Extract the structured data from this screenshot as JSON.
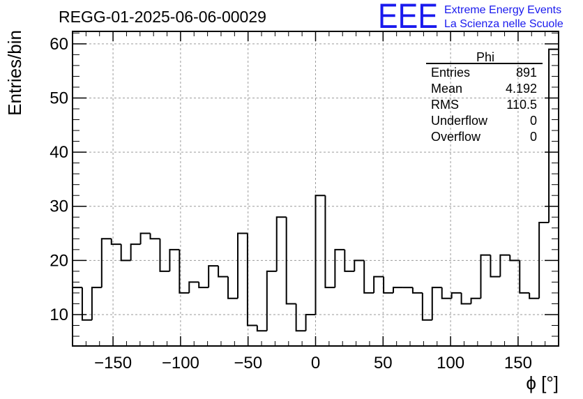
{
  "title": "REGG-01-2025-06-06-00029",
  "logo": {
    "mark": "EEE",
    "line1": "Extreme Energy Events",
    "line2": "La Scienza nelle Scuole",
    "color": "#1a1aee"
  },
  "stats_box": {
    "name": "Phi",
    "rows": [
      {
        "label": "Entries",
        "value": "891"
      },
      {
        "label": "Mean",
        "value": "4.192"
      },
      {
        "label": "RMS",
        "value": "110.5"
      },
      {
        "label": "Underflow",
        "value": "0"
      },
      {
        "label": "Overflow",
        "value": "0"
      }
    ]
  },
  "chart_data": {
    "type": "bar",
    "histogram": true,
    "title": "REGG-01-2025-06-06-00029",
    "xlabel": "ϕ [°]",
    "ylabel": "Entries/bin",
    "xlim": [
      -180,
      180
    ],
    "ylim": [
      4.2,
      62.3
    ],
    "bin_width": 7.2,
    "values": [
      15,
      9,
      15,
      24,
      23,
      20,
      23,
      25,
      24,
      18,
      22,
      14,
      16,
      15,
      19,
      17,
      13,
      25,
      8,
      7,
      18,
      28,
      12,
      7,
      10,
      32,
      15,
      22,
      18,
      20,
      14,
      17,
      14,
      15,
      15,
      14,
      9,
      15,
      13,
      14,
      12,
      13,
      21,
      17,
      21,
      20,
      14,
      13,
      27,
      59
    ],
    "xticks": [
      -150,
      -100,
      -50,
      0,
      50,
      100,
      150
    ],
    "xtick_labels": [
      "−150",
      "−100",
      "−50",
      "0",
      "50",
      "100",
      "150"
    ],
    "yticks": [
      10,
      20,
      30,
      40,
      50,
      60
    ],
    "ytick_labels": [
      "10",
      "20",
      "30",
      "40",
      "50",
      "60"
    ],
    "grid": true,
    "line_color": "#000000",
    "grid_color": "#9a9a9a"
  }
}
